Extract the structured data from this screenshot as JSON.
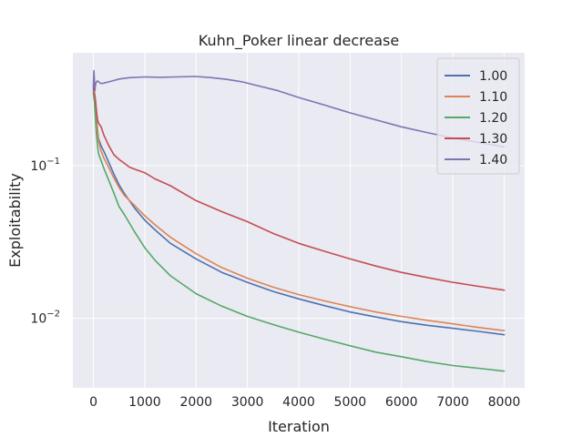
{
  "chart_data": {
    "type": "line",
    "title": "Kuhn_Poker linear decrease",
    "xlabel": "Iteration",
    "ylabel": "Exploitability",
    "xlim": [
      -400,
      8400
    ],
    "ylim": [
      0.0035,
      0.55
    ],
    "yscale": "log",
    "grid": true,
    "legend_position": "top-right",
    "x_ticks": [
      0,
      1000,
      2000,
      3000,
      4000,
      5000,
      6000,
      7000,
      8000
    ],
    "x_tick_labels": [
      "0",
      "1000",
      "2000",
      "3000",
      "4000",
      "5000",
      "6000",
      "7000",
      "8000"
    ],
    "y_ticks": [
      0.01,
      0.1
    ],
    "y_tick_labels": [
      {
        "base": "10",
        "exp": "−2"
      },
      {
        "base": "10",
        "exp": "−1"
      }
    ],
    "series": [
      {
        "name": "1.00",
        "color": "#4c72b0",
        "x": [
          0,
          20,
          40,
          60,
          80,
          100,
          150,
          200,
          300,
          400,
          500,
          600,
          800,
          1000,
          1200,
          1500,
          2000,
          2500,
          3000,
          3500,
          4000,
          4500,
          5000,
          5500,
          6000,
          6500,
          7000,
          7500,
          8000
        ],
        "y": [
          0.32,
          0.29,
          0.24,
          0.2,
          0.17,
          0.15,
          0.135,
          0.125,
          0.105,
          0.088,
          0.075,
          0.066,
          0.053,
          0.044,
          0.038,
          0.031,
          0.0245,
          0.02,
          0.0172,
          0.015,
          0.0134,
          0.0121,
          0.011,
          0.0102,
          0.0095,
          0.009,
          0.0086,
          0.0082,
          0.0078
        ]
      },
      {
        "name": "1.10",
        "color": "#dd8452",
        "x": [
          0,
          20,
          40,
          60,
          80,
          100,
          150,
          200,
          300,
          400,
          500,
          600,
          800,
          1000,
          1200,
          1500,
          2000,
          2500,
          3000,
          3500,
          4000,
          4500,
          5000,
          5500,
          6000,
          6500,
          7000,
          7500,
          8000
        ],
        "y": [
          0.31,
          0.28,
          0.23,
          0.19,
          0.165,
          0.145,
          0.125,
          0.113,
          0.097,
          0.083,
          0.072,
          0.064,
          0.055,
          0.047,
          0.041,
          0.034,
          0.0265,
          0.0215,
          0.0183,
          0.016,
          0.0143,
          0.013,
          0.0119,
          0.011,
          0.0103,
          0.0097,
          0.0092,
          0.0087,
          0.0083
        ]
      },
      {
        "name": "1.20",
        "color": "#55a868",
        "x": [
          0,
          20,
          40,
          60,
          80,
          100,
          150,
          200,
          300,
          400,
          500,
          600,
          800,
          1000,
          1200,
          1500,
          2000,
          2500,
          3000,
          3500,
          4000,
          4500,
          5000,
          5500,
          6000,
          6500,
          7000,
          7500,
          8000
        ],
        "y": [
          0.3,
          0.26,
          0.2,
          0.16,
          0.135,
          0.12,
          0.108,
          0.097,
          0.08,
          0.066,
          0.054,
          0.048,
          0.037,
          0.029,
          0.024,
          0.019,
          0.0145,
          0.012,
          0.0103,
          0.0091,
          0.0081,
          0.0073,
          0.0066,
          0.006,
          0.0056,
          0.0052,
          0.0049,
          0.0047,
          0.0045
        ]
      },
      {
        "name": "1.30",
        "color": "#c44e52",
        "x": [
          0,
          20,
          40,
          60,
          80,
          100,
          150,
          200,
          300,
          400,
          500,
          600,
          700,
          800,
          1000,
          1200,
          1500,
          2000,
          2500,
          3000,
          3500,
          4000,
          4500,
          5000,
          5500,
          6000,
          6500,
          7000,
          7500,
          8000
        ],
        "y": [
          0.33,
          0.3,
          0.27,
          0.23,
          0.2,
          0.19,
          0.18,
          0.16,
          0.135,
          0.118,
          0.11,
          0.104,
          0.098,
          0.095,
          0.09,
          0.082,
          0.074,
          0.059,
          0.05,
          0.043,
          0.036,
          0.031,
          0.0275,
          0.0245,
          0.022,
          0.02,
          0.0185,
          0.0172,
          0.0162,
          0.0153
        ]
      },
      {
        "name": "1.40",
        "color": "#8172b3",
        "x": [
          0,
          10,
          20,
          30,
          40,
          60,
          80,
          100,
          150,
          200,
          300,
          400,
          500,
          700,
          1000,
          1300,
          1600,
          2000,
          2300,
          2600,
          2900,
          3200,
          3600,
          4000,
          4500,
          5000,
          5500,
          6000,
          6500,
          7000,
          7500,
          8000
        ],
        "y": [
          0.33,
          0.42,
          0.36,
          0.31,
          0.34,
          0.355,
          0.36,
          0.355,
          0.345,
          0.348,
          0.355,
          0.362,
          0.37,
          0.378,
          0.382,
          0.38,
          0.382,
          0.385,
          0.378,
          0.368,
          0.355,
          0.335,
          0.31,
          0.28,
          0.25,
          0.222,
          0.2,
          0.18,
          0.165,
          0.152,
          0.142,
          0.133
        ]
      }
    ]
  }
}
